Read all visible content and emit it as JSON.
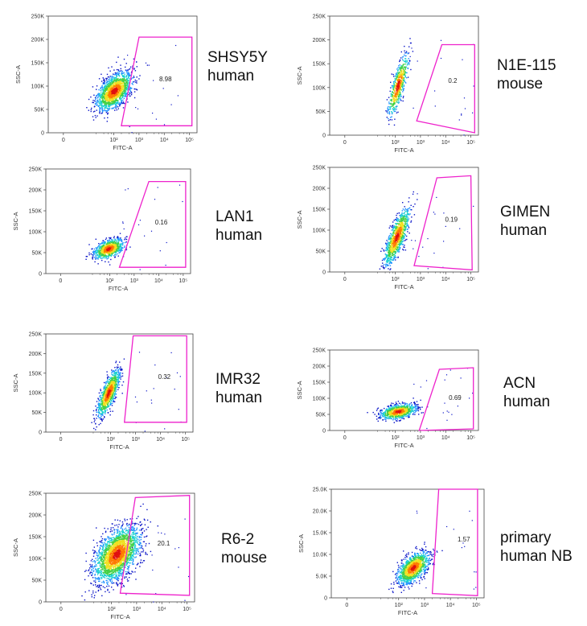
{
  "colors": {
    "gate": "#ee22cc",
    "axis": "#444444",
    "density": [
      "#0a14c8",
      "#1e90ff",
      "#18d0d0",
      "#44d044",
      "#f0e020",
      "#ff7a00",
      "#e01010"
    ]
  },
  "chart_data": [
    {
      "type": "scatter",
      "cell_line": "SHSY5Y",
      "species": "human",
      "gate_value": "8.98",
      "xlabel": "FITC-A",
      "ylabel": "SSC-A",
      "x_ticks": [
        "0",
        "10²",
        "10³",
        "10⁴",
        "10⁵"
      ],
      "y_ticks": [
        "0",
        "50K",
        "100K",
        "150K",
        "200K",
        "250K"
      ],
      "ylim": [
        0,
        250000
      ],
      "cluster": {
        "x_decade": 2.0,
        "y_center": 90000,
        "x_spread": 0.35,
        "y_spread": 28000,
        "tilt": 0.8,
        "points": 1600
      },
      "gate": [
        [
          2.3,
          15000
        ],
        [
          3.0,
          205000
        ],
        [
          5.1,
          205000
        ],
        [
          5.1,
          15000
        ]
      ]
    },
    {
      "type": "scatter",
      "cell_line": "N1E-115",
      "species": "mouse",
      "gate_value": "0.2",
      "xlabel": "FITC-A",
      "ylabel": "SSC-A",
      "x_ticks": [
        "0",
        "10²",
        "10³",
        "10⁴",
        "10⁵"
      ],
      "y_ticks": [
        "0",
        "50K",
        "100K",
        "150K",
        "200K",
        "250K"
      ],
      "ylim": [
        0,
        250000
      ],
      "cluster": {
        "x_decade": 2.1,
        "y_center": 105000,
        "x_spread": 0.2,
        "y_spread": 32000,
        "tilt": 1.6,
        "points": 600
      },
      "gate": [
        [
          2.85,
          30000
        ],
        [
          3.85,
          190000
        ],
        [
          5.15,
          190000
        ],
        [
          5.15,
          5000
        ]
      ]
    },
    {
      "type": "scatter",
      "cell_line": "LAN1",
      "species": "human",
      "gate_value": "0.16",
      "xlabel": "FITC-A",
      "ylabel": "SSC-A",
      "x_ticks": [
        "0",
        "10²",
        "10³",
        "10⁴",
        "10⁵"
      ],
      "y_ticks": [
        "0",
        "50K",
        "100K",
        "150K",
        "200K",
        "250K"
      ],
      "ylim": [
        0,
        250000
      ],
      "cluster": {
        "x_decade": 1.95,
        "y_center": 60000,
        "x_spread": 0.3,
        "y_spread": 18000,
        "tilt": 0.6,
        "points": 900
      },
      "gate": [
        [
          2.4,
          15000
        ],
        [
          3.6,
          220000
        ],
        [
          5.1,
          220000
        ],
        [
          5.1,
          15000
        ]
      ]
    },
    {
      "type": "scatter",
      "cell_line": "GIMEN",
      "species": "human",
      "gate_value": "0.19",
      "xlabel": "FITC-A",
      "ylabel": "SSC-A",
      "x_ticks": [
        "0",
        "10²",
        "10³",
        "10⁴",
        "10⁵"
      ],
      "y_ticks": [
        "0",
        "50K",
        "100K",
        "150K",
        "200K",
        "250K"
      ],
      "ylim": [
        0,
        250000
      ],
      "cluster": {
        "x_decade": 2.05,
        "y_center": 85000,
        "x_spread": 0.25,
        "y_spread": 35000,
        "tilt": 1.5,
        "points": 1000
      },
      "gate": [
        [
          2.75,
          15000
        ],
        [
          3.65,
          225000
        ],
        [
          5.0,
          230000
        ],
        [
          5.05,
          5000
        ]
      ]
    },
    {
      "type": "scatter",
      "cell_line": "IMR32",
      "species": "human",
      "gate_value": "0.32",
      "xlabel": "FITC-A",
      "ylabel": "SSC-A",
      "x_ticks": [
        "0",
        "10²",
        "10³",
        "10⁴",
        "10⁵"
      ],
      "y_ticks": [
        "0",
        "50K",
        "100K",
        "150K",
        "200K",
        "250K"
      ],
      "ylim": [
        0,
        250000
      ],
      "cluster": {
        "x_decade": 1.9,
        "y_center": 100000,
        "x_spread": 0.22,
        "y_spread": 32000,
        "tilt": 1.4,
        "points": 1000
      },
      "gate": [
        [
          2.55,
          25000
        ],
        [
          2.9,
          245000
        ],
        [
          5.05,
          245000
        ],
        [
          5.05,
          25000
        ]
      ]
    },
    {
      "type": "scatter",
      "cell_line": "ACN",
      "species": "human",
      "gate_value": "0.69",
      "xlabel": "FITC-A",
      "ylabel": "SSC-A",
      "x_ticks": [
        "0",
        "10²",
        "10³",
        "10⁴",
        "10⁵"
      ],
      "y_ticks": [
        "0",
        "50K",
        "100K",
        "150K",
        "200K",
        "250K"
      ],
      "ylim": [
        0,
        250000
      ],
      "cluster": {
        "x_decade": 2.1,
        "y_center": 60000,
        "x_spread": 0.35,
        "y_spread": 18000,
        "tilt": 0.5,
        "points": 900
      },
      "gate": [
        [
          2.95,
          0
        ],
        [
          3.75,
          190000
        ],
        [
          5.1,
          195000
        ],
        [
          5.1,
          5000
        ]
      ]
    },
    {
      "type": "scatter",
      "cell_line": "R6-2",
      "species": "mouse",
      "gate_value": "20.1",
      "xlabel": "FITC-A",
      "ylabel": "SSC-A",
      "x_ticks": [
        "0",
        "10²",
        "10³",
        "10⁴",
        "10⁵"
      ],
      "y_ticks": [
        "0",
        "50K",
        "100K",
        "150K",
        "200K",
        "250K"
      ],
      "ylim": [
        0,
        250000
      ],
      "cluster": {
        "x_decade": 2.2,
        "y_center": 110000,
        "x_spread": 0.45,
        "y_spread": 45000,
        "tilt": 0.7,
        "points": 2400
      },
      "gate": [
        [
          2.35,
          20000
        ],
        [
          2.95,
          240000
        ],
        [
          5.1,
          245000
        ],
        [
          5.1,
          15000
        ]
      ]
    },
    {
      "type": "scatter",
      "cell_line": "primary",
      "species": "human NB",
      "gate_value": "1.57",
      "xlabel": "FITC-A",
      "ylabel": "SSC-A",
      "x_ticks": [
        "0",
        "10²",
        "10³",
        "10⁴",
        "10⁵"
      ],
      "y_ticks": [
        "0",
        "5.0K",
        "10.0K",
        "15.0K",
        "20.0K",
        "25.0K"
      ],
      "ylim": [
        0,
        25000
      ],
      "cluster": {
        "x_decade": 2.55,
        "y_center": 7000,
        "x_spread": 0.3,
        "y_spread": 2500,
        "tilt": 0.8,
        "points": 1200
      },
      "gate": [
        [
          3.3,
          1000
        ],
        [
          3.55,
          25000
        ],
        [
          5.05,
          25000
        ],
        [
          5.05,
          500
        ]
      ]
    }
  ]
}
